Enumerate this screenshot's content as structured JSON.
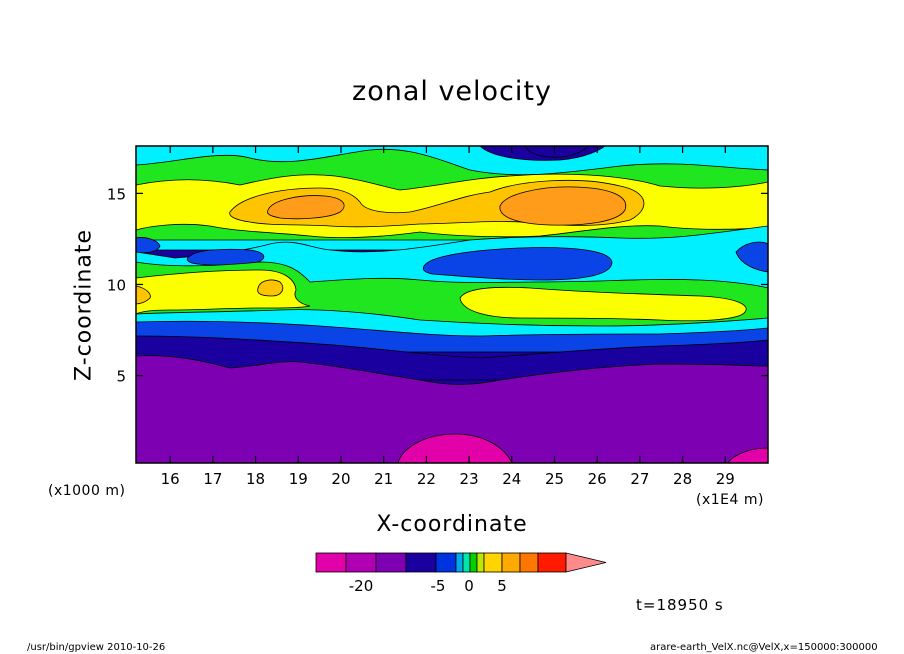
{
  "chart_data": {
    "type": "heatmap",
    "title": "zonal velocity",
    "xlabel": "X-coordinate",
    "ylabel": "Z-coordinate",
    "x_unit": "(x1E4 m)",
    "y_unit": "(x1000 m)",
    "xlim": [
      15.2,
      30.0
    ],
    "ylim": [
      0.2,
      17.6
    ],
    "x_ticks": [
      16,
      17,
      18,
      19,
      20,
      21,
      22,
      23,
      24,
      25,
      26,
      27,
      28,
      29
    ],
    "y_ticks": [
      5,
      10,
      15
    ],
    "colorbar": {
      "tick_labels": [
        {
          "value": -20,
          "label": "-20"
        },
        {
          "value": -5,
          "label": "-5"
        },
        {
          "value": 0,
          "label": "0"
        },
        {
          "value": 5,
          "label": "5"
        }
      ],
      "level_colors": [
        "#e200a8",
        "#b100b3",
        "#7d00b3",
        "#1b00a0",
        "#0033e0",
        "#00aaee",
        "#00e6aa",
        "#00d200",
        "#bfe600",
        "#ffd400",
        "#ffaa00",
        "#ff7700",
        "#ff1a00",
        "#ff8a8a"
      ]
    },
    "time_label": "t=18950 s",
    "footer_left": "/usr/bin/gpview   2010-10-26",
    "footer_right": "arare-earth_VelX.nc@VelX,x=150000:300000"
  },
  "colors": {
    "magenta": "#e200a8",
    "violet": "#7d00b3",
    "navy": "#1b00a0",
    "blue": "#0a44e6",
    "cyan": "#00f0ff",
    "green": "#20e620",
    "yellow": "#fbff00",
    "lightorange": "#ffc400",
    "orange": "#ff9c1a"
  }
}
